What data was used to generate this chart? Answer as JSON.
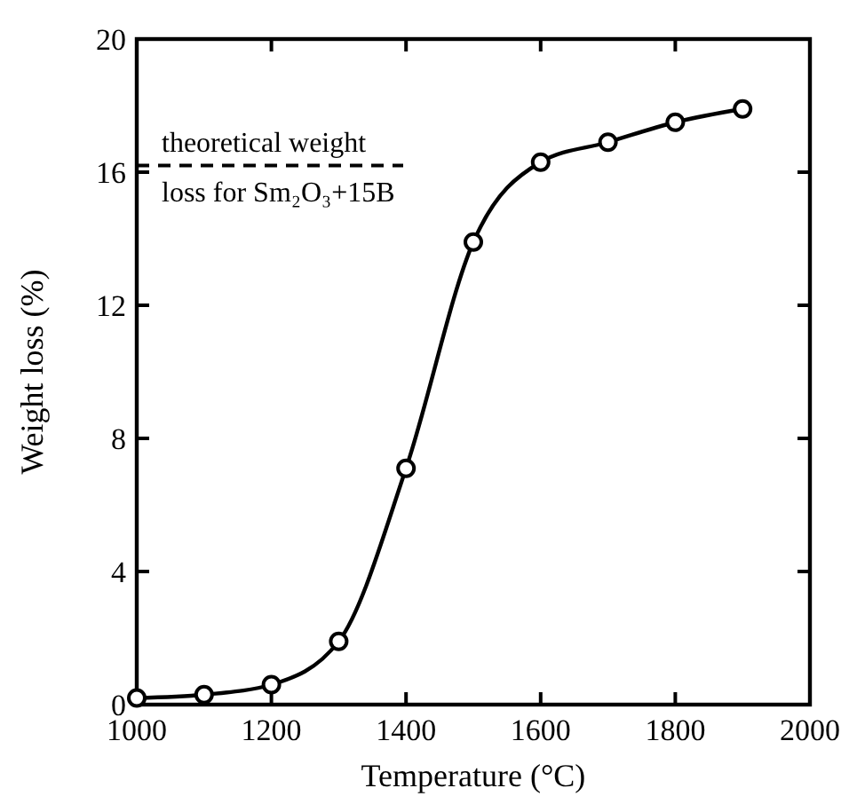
{
  "chart_data": {
    "type": "line",
    "xlabel": "Temperature (°C)",
    "ylabel": "Weight loss (%)",
    "x": [
      1000,
      1100,
      1200,
      1300,
      1400,
      1500,
      1600,
      1700,
      1800,
      1900
    ],
    "series": [
      {
        "color": "#000000",
        "values": [
          0.2,
          0.3,
          0.6,
          1.9,
          7.1,
          13.9,
          16.3,
          16.9,
          17.5,
          17.9
        ]
      }
    ],
    "xlim": [
      1000,
      2000
    ],
    "xticks": [
      1000,
      1200,
      1400,
      1600,
      1800,
      2000
    ],
    "ylim": [
      0,
      20
    ],
    "yticks": [
      0,
      4,
      8,
      12,
      16,
      20
    ],
    "ref_lines": [
      {
        "axis": "y",
        "value": 16.2,
        "label": "theoretical weight loss for Sm₂O₃+15B",
        "line_style": "dashed",
        "color": "#000000"
      }
    ],
    "marker": "circle",
    "line_style": "solid",
    "grid": false
  }
}
